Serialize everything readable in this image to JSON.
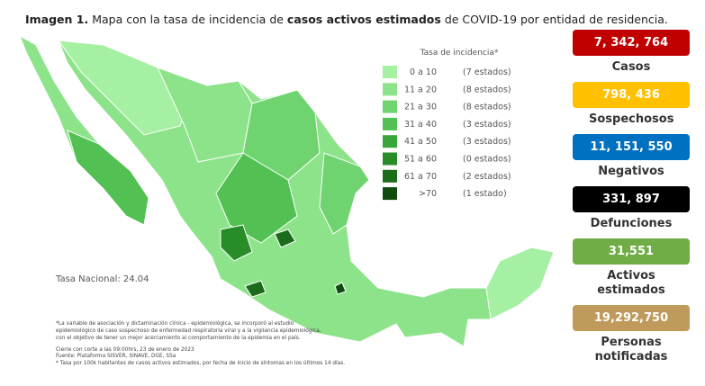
{
  "header": {
    "parts": [
      "Imagen 1.",
      " Mapa con la tasa de incidencia de ",
      "casos activos estimados",
      " de COVID-19 por entidad de residencia."
    ]
  },
  "legend": {
    "title": "Tasa de incidencia*",
    "items": [
      {
        "range": "0 a 10",
        "count": "(7 estados)",
        "color": "#a6f0a3"
      },
      {
        "range": "11 a 20",
        "count": "(8 estados)",
        "color": "#8de38a"
      },
      {
        "range": "21 a 30",
        "count": "(8 estados)",
        "color": "#6fd46f"
      },
      {
        "range": "31 a 40",
        "count": "(3 estados)",
        "color": "#52c052"
      },
      {
        "range": "41 a 50",
        "count": "(3 estados)",
        "color": "#3aa63a"
      },
      {
        "range": "51 a 60",
        "count": "(0 estados)",
        "color": "#288c28"
      },
      {
        "range": "61 a 70",
        "count": "(2 estados)",
        "color": "#1b6b1b"
      },
      {
        "range": ">70",
        "count": "(1 estado)",
        "color": "#0e4d0e"
      }
    ]
  },
  "national_rate": "Tasa Nacional: 24.04",
  "notes": [
    "*La variable de asociación y dictaminación clínica - epidemiológica, se incorporó al estudio",
    "epidemiológico de caso sospechoso de enfermedad respiratoria viral y a la vigilancia epidemiológica,",
    "con el objetivo de tener un mejor acercamiento al comportamiento de la epidemia en el país.",
    "Cierre con corte a las 09:00hrs, 23 de enero de 2023",
    "Fuente: Plataforma SISVER, SINAVE, DGE, SSa",
    "* Tasa por 100k habitantes de casos activos estimados, por fecha de inicio de síntomas en los últimos 14 días."
  ],
  "stats": [
    {
      "value": "7, 342, 764",
      "label": "Casos",
      "color": "#c00000",
      "text_color": "#ffffff"
    },
    {
      "value": "798, 436",
      "label": "Sospechosos",
      "color": "#ffc000",
      "text_color": "#ffffff"
    },
    {
      "value": "11, 151, 550",
      "label": "Negativos",
      "color": "#0070c0",
      "text_color": "#ffffff"
    },
    {
      "value": "331, 897",
      "label": "Defunciones",
      "color": "#000000",
      "text_color": "#ffffff"
    },
    {
      "value": "31,551",
      "label": "Activos estimados",
      "color": "#70ad47",
      "text_color": "#ffffff"
    },
    {
      "value": "19,292,750",
      "label": "Personas notificadas",
      "color": "#bf9a5a",
      "text_color": "#ffffff"
    }
  ]
}
